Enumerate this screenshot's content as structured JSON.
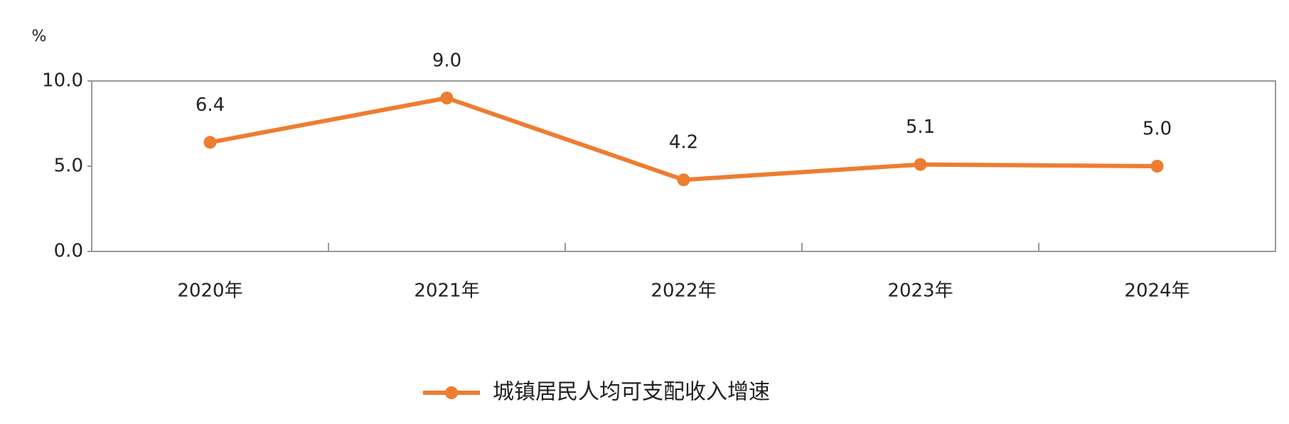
{
  "chart_data": {
    "type": "line",
    "y_label": "%",
    "categories": [
      "2020年",
      "2021年",
      "2022年",
      "2023年",
      "2024年"
    ],
    "series": [
      {
        "name": "城镇居民人均可支配收入增速",
        "color": "#ed7d31",
        "values": [
          6.4,
          9.0,
          4.2,
          5.1,
          5.0
        ],
        "value_labels": [
          "6.4",
          "9.0",
          "4.2",
          "5.1",
          "5.0"
        ]
      }
    ],
    "ylim": [
      0,
      10
    ],
    "yticks": [
      {
        "value": 0,
        "label": "0.0"
      },
      {
        "value": 5,
        "label": "5.0"
      },
      {
        "value": 10,
        "label": "10.0"
      }
    ],
    "legend": "bottom"
  }
}
